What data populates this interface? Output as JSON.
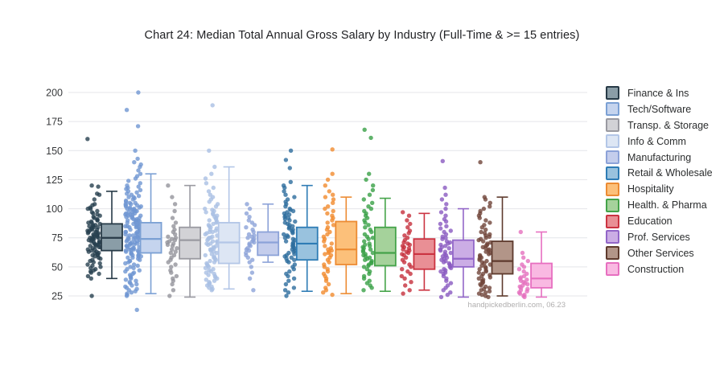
{
  "watermark": "handpickedberlin.com, 06.23",
  "chart_data": {
    "type": "box",
    "title": "Chart 24: Median Total Annual Gross Salary by Industry (Full-Time & >= 15 entries)",
    "xlabel": "",
    "ylabel": "",
    "yticks": [
      25,
      50,
      75,
      100,
      125,
      150,
      175,
      200
    ],
    "ylim": [
      10,
      210
    ],
    "grid": true,
    "legend_position": "right",
    "gridline_color": "#e4e5e9",
    "categories": [
      "Finance & Ins",
      "Tech/Software",
      "Transp. & Storage",
      "Info & Comm",
      "Manufacturing",
      "Retail & Wholesale",
      "Hospitality",
      "Health. & Pharma",
      "Education",
      "Prof. Services",
      "Other Services",
      "Construction"
    ],
    "series": [
      {
        "name": "Finance & Ins",
        "fill": "#8a9da7",
        "stroke": "#273a47",
        "point_color": "#27404f",
        "box": {
          "low": 40,
          "q1": 64,
          "median": 75,
          "q3": 87,
          "high": 115
        },
        "points": [
          160,
          120,
          119,
          113,
          112,
          108,
          104,
          103,
          101,
          100,
          100,
          98,
          97,
          96,
          95,
          94,
          93,
          92,
          91,
          90,
          90,
          89,
          88,
          88,
          87,
          86,
          86,
          85,
          85,
          84,
          84,
          83,
          83,
          82,
          82,
          81,
          81,
          80,
          80,
          80,
          79,
          79,
          78,
          78,
          77,
          77,
          76,
          76,
          75,
          75,
          75,
          74,
          74,
          73,
          73,
          72,
          72,
          71,
          71,
          70,
          70,
          69,
          69,
          68,
          68,
          67,
          67,
          66,
          65,
          65,
          64,
          63,
          63,
          62,
          62,
          61,
          60,
          60,
          59,
          58,
          57,
          56,
          55,
          54,
          53,
          52,
          51,
          50,
          49,
          48,
          47,
          46,
          45,
          44,
          42,
          40,
          25
        ]
      },
      {
        "name": "Tech/Software",
        "fill": "#c5d4ee",
        "stroke": "#7ba0d4",
        "point_color": "#6f96d2",
        "box": {
          "low": 27,
          "q1": 62,
          "median": 74,
          "q3": 88,
          "high": 130
        },
        "points": [
          200,
          185,
          171,
          150,
          143,
          140,
          138,
          136,
          133,
          130,
          128,
          126,
          124,
          122,
          120,
          119,
          118,
          117,
          116,
          115,
          114,
          113,
          112,
          111,
          110,
          110,
          109,
          108,
          107,
          106,
          105,
          105,
          104,
          104,
          103,
          103,
          102,
          102,
          101,
          101,
          100,
          100,
          100,
          99,
          99,
          98,
          98,
          97,
          97,
          96,
          96,
          95,
          95,
          95,
          94,
          94,
          93,
          93,
          92,
          92,
          91,
          91,
          90,
          90,
          90,
          89,
          89,
          88,
          88,
          87,
          87,
          86,
          86,
          85,
          85,
          85,
          84,
          84,
          83,
          83,
          82,
          82,
          81,
          81,
          80,
          80,
          80,
          79,
          79,
          78,
          78,
          77,
          77,
          76,
          76,
          75,
          75,
          75,
          74,
          74,
          73,
          73,
          72,
          72,
          71,
          71,
          70,
          70,
          70,
          69,
          69,
          68,
          68,
          67,
          67,
          66,
          66,
          65,
          65,
          65,
          64,
          64,
          63,
          63,
          62,
          62,
          61,
          61,
          60,
          60,
          59,
          59,
          58,
          58,
          57,
          56,
          55,
          55,
          54,
          53,
          52,
          51,
          50,
          49,
          48,
          47,
          46,
          45,
          44,
          43,
          42,
          41,
          40,
          39,
          38,
          37,
          36,
          35,
          34,
          33,
          32,
          31,
          30,
          29,
          28,
          27,
          26,
          25,
          13
        ]
      },
      {
        "name": "Transp. & Storage",
        "fill": "#d2d2d6",
        "stroke": "#9a9aa1",
        "point_color": "#94949b",
        "box": {
          "low": 24,
          "q1": 57,
          "median": 73,
          "q3": 84,
          "high": 120
        },
        "points": [
          120,
          110,
          104,
          98,
          92,
          88,
          85,
          82,
          80,
          78,
          76,
          75,
          74,
          73,
          72,
          71,
          70,
          69,
          68,
          66,
          65,
          63,
          62,
          60,
          58,
          56,
          54,
          52,
          50,
          47,
          45,
          42,
          40,
          38,
          35,
          30,
          25
        ]
      },
      {
        "name": "Info & Comm",
        "fill": "#dde6f4",
        "stroke": "#b3c6e7",
        "point_color": "#a9bfe3",
        "box": {
          "low": 31,
          "q1": 53,
          "median": 71,
          "q3": 88,
          "high": 136
        },
        "points": [
          189,
          150,
          136,
          130,
          126,
          122,
          118,
          115,
          112,
          110,
          108,
          106,
          104,
          102,
          100,
          99,
          98,
          97,
          96,
          95,
          94,
          93,
          92,
          91,
          90,
          89,
          88,
          87,
          86,
          85,
          84,
          83,
          82,
          81,
          80,
          80,
          79,
          78,
          77,
          76,
          75,
          75,
          74,
          73,
          72,
          72,
          71,
          70,
          70,
          69,
          68,
          67,
          66,
          65,
          65,
          64,
          63,
          62,
          61,
          60,
          59,
          58,
          57,
          56,
          55,
          54,
          53,
          52,
          51,
          50,
          49,
          48,
          47,
          46,
          45,
          44,
          43,
          42,
          41,
          40,
          39,
          38,
          37,
          36,
          35,
          34,
          33,
          32,
          31,
          30
        ]
      },
      {
        "name": "Manufacturing",
        "fill": "#c4cdec",
        "stroke": "#8ca2d8",
        "point_color": "#8ca2d8",
        "box": {
          "low": 54,
          "q1": 60,
          "median": 71,
          "q3": 80,
          "high": 104
        },
        "points": [
          104,
          100,
          96,
          93,
          90,
          88,
          86,
          84,
          82,
          80,
          78,
          77,
          76,
          75,
          74,
          73,
          72,
          71,
          70,
          69,
          68,
          66,
          65,
          64,
          62,
          60,
          58,
          56,
          54,
          50,
          45,
          40,
          30
        ]
      },
      {
        "name": "Retail & Wholesale",
        "fill": "#99c2de",
        "stroke": "#2e7cb5",
        "point_color": "#2d6d9e",
        "box": {
          "low": 29,
          "q1": 56,
          "median": 70,
          "q3": 84,
          "high": 120
        },
        "points": [
          150,
          142,
          135,
          123,
          120,
          118,
          115,
          112,
          110,
          108,
          106,
          104,
          102,
          100,
          99,
          98,
          97,
          96,
          95,
          94,
          93,
          92,
          91,
          90,
          89,
          88,
          87,
          86,
          85,
          84,
          83,
          82,
          81,
          80,
          79,
          78,
          77,
          76,
          75,
          74,
          73,
          72,
          71,
          70,
          69,
          68,
          67,
          66,
          65,
          64,
          63,
          62,
          61,
          60,
          59,
          58,
          57,
          56,
          55,
          54,
          52,
          50,
          48,
          46,
          44,
          42,
          40,
          38,
          35,
          32,
          30,
          28,
          25
        ]
      },
      {
        "name": "Hospitality",
        "fill": "#fcc07a",
        "stroke": "#ec8b33",
        "point_color": "#f18b2e",
        "box": {
          "low": 27,
          "q1": 52,
          "median": 65,
          "q3": 89,
          "high": 110
        },
        "points": [
          151,
          130,
          125,
          120,
          115,
          112,
          110,
          108,
          105,
          102,
          100,
          98,
          96,
          94,
          92,
          90,
          88,
          86,
          84,
          82,
          80,
          78,
          76,
          74,
          72,
          70,
          68,
          66,
          65,
          64,
          63,
          62,
          61,
          60,
          58,
          56,
          54,
          52,
          50,
          48,
          46,
          44,
          42,
          40,
          38,
          35,
          32,
          30,
          28,
          26
        ]
      },
      {
        "name": "Health. & Pharma",
        "fill": "#a5d29b",
        "stroke": "#44a349",
        "point_color": "#38a046",
        "box": {
          "low": 29,
          "q1": 51,
          "median": 62,
          "q3": 84,
          "high": 109
        },
        "points": [
          168,
          161,
          130,
          125,
          120,
          116,
          112,
          108,
          105,
          102,
          100,
          98,
          96,
          94,
          92,
          90,
          88,
          86,
          84,
          82,
          80,
          78,
          76,
          75,
          74,
          72,
          70,
          69,
          68,
          67,
          66,
          65,
          64,
          63,
          62,
          61,
          60,
          59,
          58,
          57,
          56,
          55,
          54,
          53,
          52,
          51,
          50,
          48,
          46,
          44,
          42,
          40,
          38,
          36,
          34,
          32,
          30
        ]
      },
      {
        "name": "Education",
        "fill": "#e98f95",
        "stroke": "#cb3341",
        "point_color": "#c52f3c",
        "box": {
          "low": 30,
          "q1": 48,
          "median": 61,
          "q3": 74,
          "high": 96
        },
        "points": [
          97,
          94,
          90,
          87,
          84,
          81,
          79,
          77,
          75,
          73,
          71,
          70,
          69,
          68,
          67,
          66,
          65,
          64,
          63,
          62,
          61,
          60,
          58,
          56,
          54,
          52,
          50,
          48,
          46,
          44,
          42,
          40,
          37,
          34,
          30,
          27
        ]
      },
      {
        "name": "Prof. Services",
        "fill": "#cbade5",
        "stroke": "#9266c8",
        "point_color": "#8a5ac0",
        "box": {
          "low": 24,
          "q1": 50,
          "median": 57,
          "q3": 73,
          "high": 100
        },
        "points": [
          141,
          118,
          112,
          108,
          104,
          100,
          97,
          94,
          91,
          89,
          87,
          85,
          83,
          81,
          80,
          78,
          76,
          75,
          74,
          72,
          71,
          70,
          69,
          68,
          67,
          66,
          65,
          64,
          63,
          62,
          61,
          60,
          59,
          58,
          57,
          56,
          55,
          54,
          53,
          52,
          51,
          50,
          49,
          48,
          47,
          46,
          45,
          44,
          42,
          40,
          38,
          36,
          34,
          32,
          30,
          28,
          26,
          24
        ]
      },
      {
        "name": "Other Services",
        "fill": "#b29588",
        "stroke": "#5e3a2d",
        "point_color": "#714539",
        "box": {
          "low": 25,
          "q1": 44,
          "median": 55,
          "q3": 72,
          "high": 110
        },
        "points": [
          140,
          110,
          108,
          105,
          102,
          100,
          98,
          96,
          94,
          92,
          90,
          88,
          86,
          84,
          82,
          80,
          79,
          78,
          77,
          76,
          75,
          74,
          73,
          72,
          71,
          70,
          69,
          68,
          67,
          66,
          65,
          64,
          63,
          62,
          61,
          60,
          59,
          58,
          57,
          56,
          55,
          54,
          53,
          52,
          51,
          50,
          49,
          48,
          47,
          46,
          45,
          44,
          43,
          42,
          41,
          40,
          39,
          38,
          37,
          36,
          35,
          34,
          33,
          32,
          31,
          30,
          29,
          28,
          27,
          26,
          25,
          24
        ]
      },
      {
        "name": "Construction",
        "fill": "#f9b9e2",
        "stroke": "#e76fc0",
        "point_color": "#e570be",
        "box": {
          "low": 24,
          "q1": 32,
          "median": 40,
          "q3": 53,
          "high": 80
        },
        "points": [
          80,
          62,
          58,
          55,
          52,
          50,
          48,
          46,
          44,
          42,
          41,
          40,
          39,
          38,
          37,
          36,
          35,
          34,
          33,
          32,
          31,
          30,
          29,
          28,
          27,
          26,
          25,
          24
        ]
      }
    ]
  }
}
